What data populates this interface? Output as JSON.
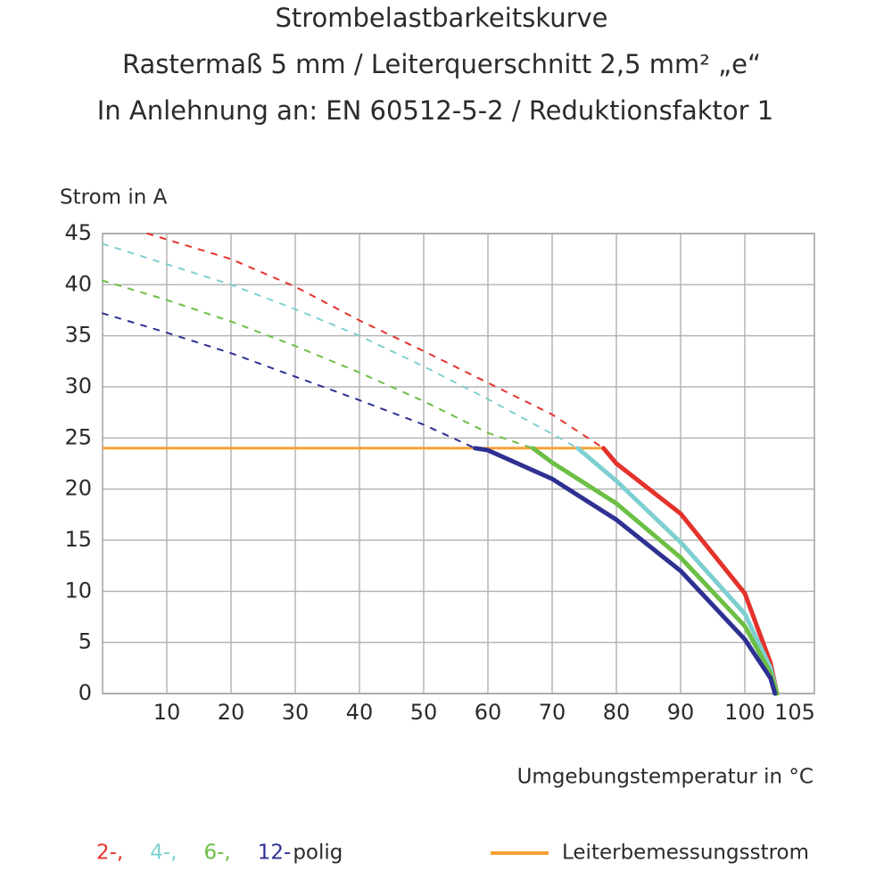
{
  "chart_data": {
    "type": "line",
    "title": "Strombelastbarkeitskurve",
    "subtitle": "Rastermaß 5 mm / Leiterquerschnitt 2,5 mm² „e“",
    "subtitle2": "In Anlehnung an: EN 60512-5-2 / Reduktionsfaktor 1",
    "y_label": "Strom in A",
    "x_label": "Umgebungstemperatur in °C",
    "legend_suffix": "polig",
    "xlim": [
      0,
      110
    ],
    "ylim": [
      0,
      45
    ],
    "xticks": [
      10,
      20,
      30,
      40,
      50,
      60,
      70,
      80,
      90,
      100,
      105
    ],
    "yticks": [
      0,
      5,
      10,
      15,
      20,
      25,
      30,
      35,
      40,
      45
    ],
    "grid": true,
    "series": [
      {
        "name": "2-,",
        "color": "#e4322b",
        "x": [
          7,
          20,
          30,
          40,
          50,
          60,
          70,
          78,
          80,
          90,
          100,
          104,
          105
        ],
        "values": [
          45,
          42.5,
          39.8,
          36.5,
          33.5,
          30.4,
          27.3,
          24,
          22.5,
          17.6,
          9.8,
          3,
          0
        ]
      },
      {
        "name": "4-,",
        "color": "#7fcfd0",
        "x": [
          0,
          10,
          20,
          30,
          40,
          50,
          60,
          70,
          74,
          80,
          90,
          100,
          104,
          105
        ],
        "values": [
          44,
          42,
          40,
          37.6,
          35,
          32,
          28.8,
          25.4,
          24,
          20.8,
          14.8,
          7.8,
          2.5,
          0
        ]
      },
      {
        "name": "6-,",
        "color": "#6cbf45",
        "x": [
          0,
          10,
          20,
          30,
          40,
          50,
          60,
          67,
          70,
          80,
          90,
          100,
          104,
          105
        ],
        "values": [
          40.4,
          38.5,
          36.4,
          34,
          31.4,
          28.6,
          25.5,
          24,
          22.6,
          18.6,
          13.3,
          6.6,
          2,
          0
        ]
      },
      {
        "name": "12-",
        "color": "#2e3192",
        "x": [
          0,
          10,
          20,
          30,
          40,
          50,
          58,
          60,
          70,
          80,
          90,
          100,
          104,
          104.7
        ],
        "values": [
          37.2,
          35.3,
          33.3,
          31,
          28.7,
          26.3,
          24,
          23.8,
          21,
          17,
          12,
          5.3,
          1.5,
          0
        ]
      }
    ],
    "rated_current": {
      "name": "Leiterbemessungsstrom",
      "color": "#f7a234",
      "x": [
        0,
        78
      ],
      "values": [
        24,
        24
      ]
    }
  }
}
